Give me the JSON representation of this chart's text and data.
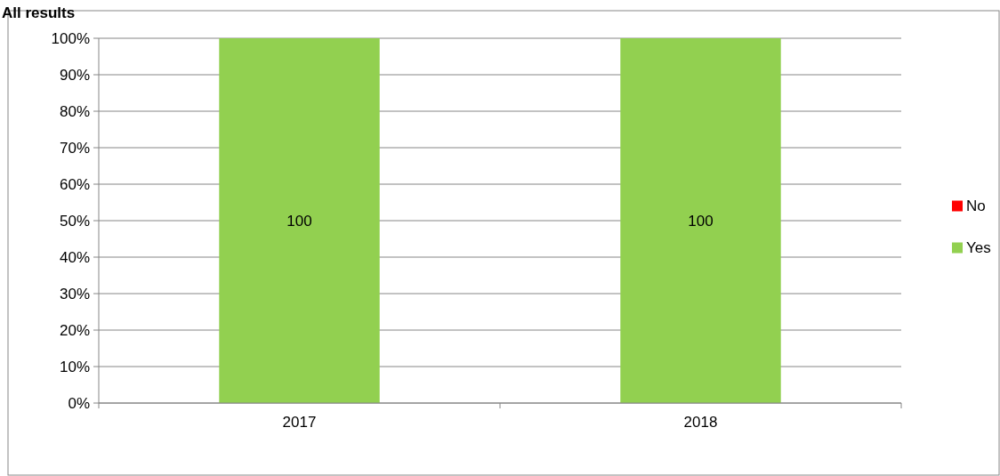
{
  "chart_data": {
    "type": "bar",
    "title": "All results",
    "categories": [
      "2017",
      "2018"
    ],
    "stacked": true,
    "series": [
      {
        "name": "Yes",
        "color": "#92d050",
        "values": [
          100,
          100
        ],
        "value_labels": [
          "100",
          "100"
        ]
      },
      {
        "name": "No",
        "color": "#ff0000",
        "values": [
          0,
          0
        ]
      }
    ],
    "ylim": [
      0,
      100
    ],
    "yticks": [
      {
        "value": 0,
        "label": "0%"
      },
      {
        "value": 10,
        "label": "10%"
      },
      {
        "value": 20,
        "label": "20%"
      },
      {
        "value": 30,
        "label": "30%"
      },
      {
        "value": 40,
        "label": "40%"
      },
      {
        "value": 50,
        "label": "50%"
      },
      {
        "value": 60,
        "label": "60%"
      },
      {
        "value": 70,
        "label": "70%"
      },
      {
        "value": 80,
        "label": "80%"
      },
      {
        "value": 90,
        "label": "90%"
      },
      {
        "value": 100,
        "label": "100%"
      }
    ],
    "grid": "y",
    "legend": "right"
  }
}
